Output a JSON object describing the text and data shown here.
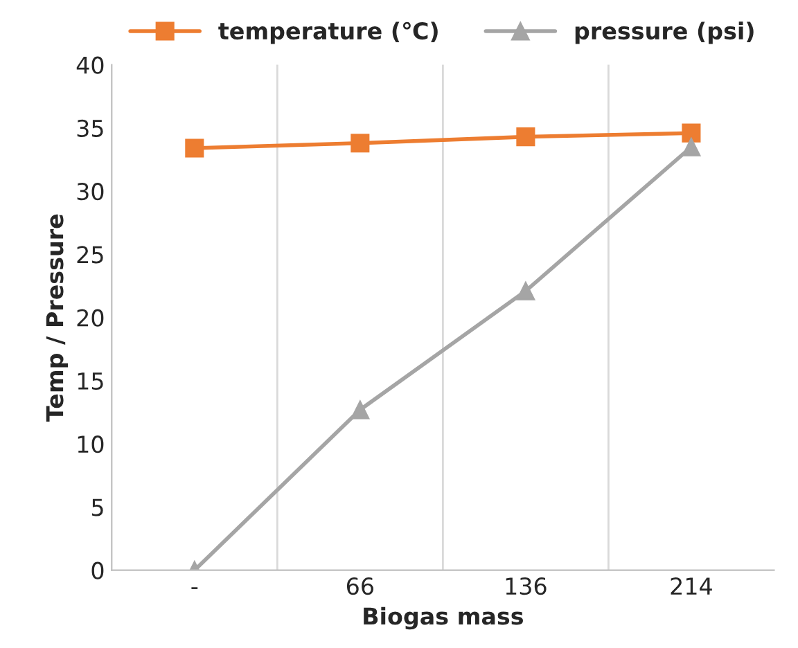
{
  "chart_data": {
    "type": "line",
    "xlabel": "Biogas mass",
    "ylabel": "Temp / Pressure",
    "categories": [
      "-",
      "66",
      "136",
      "214"
    ],
    "series": [
      {
        "name": "temperature (℃)",
        "color": "#ed7d31",
        "marker": "square",
        "values": [
          33.4,
          33.8,
          34.3,
          34.6
        ]
      },
      {
        "name": "pressure (psi)",
        "color": "#a5a5a5",
        "marker": "triangle",
        "values": [
          0,
          12.7,
          22.1,
          33.5
        ]
      }
    ],
    "ylim": [
      0,
      40
    ],
    "yticks": [
      0,
      5,
      10,
      15,
      20,
      25,
      30,
      35,
      40
    ],
    "grid": "x",
    "legend": "top",
    "line_style": "solid"
  }
}
